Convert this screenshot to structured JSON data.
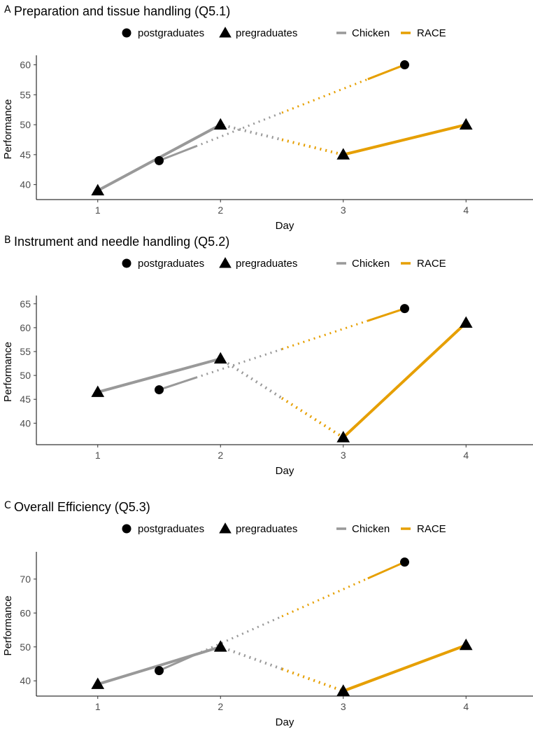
{
  "legend": {
    "shape_items": [
      "postgraduates",
      "pregraduates"
    ],
    "line_items": [
      "Chicken",
      "RACE"
    ]
  },
  "colors": {
    "Chicken": "#999999",
    "RACE": "#E69F00",
    "marker": "#000000"
  },
  "chart_data": [
    {
      "panel": "A",
      "type": "line",
      "title": "Preparation and tissue handling (Q5.1)",
      "xlabel": "Day",
      "ylabel": "Performance",
      "x_ticks": [
        1,
        2,
        3,
        4
      ],
      "y_ticks": [
        40,
        45,
        50,
        55,
        60
      ],
      "xlim": [
        0.5,
        4.5
      ],
      "ylim": [
        37.5,
        61.0
      ],
      "series": [
        {
          "name": "postgraduates",
          "shape": "circle",
          "x": [
            1.5,
            3.5
          ],
          "y": [
            44,
            60
          ]
        },
        {
          "name": "pregraduates",
          "shape": "triangle",
          "x": [
            1,
            2,
            3,
            4
          ],
          "y": [
            39,
            50,
            45,
            50
          ]
        }
      ]
    },
    {
      "panel": "B",
      "type": "line",
      "title": "Instrument and needle handling (Q5.2)",
      "xlabel": "Day",
      "ylabel": "Performance",
      "x_ticks": [
        1,
        2,
        3,
        4
      ],
      "y_ticks": [
        40,
        45,
        50,
        55,
        60,
        65
      ],
      "xlim": [
        0.5,
        4.5
      ],
      "ylim": [
        35.5,
        66.0
      ],
      "series": [
        {
          "name": "postgraduates",
          "shape": "circle",
          "x": [
            1.5,
            3.5
          ],
          "y": [
            47,
            64
          ]
        },
        {
          "name": "pregraduates",
          "shape": "triangle",
          "x": [
            1,
            2,
            3,
            4
          ],
          "y": [
            46.5,
            53.5,
            37,
            61
          ]
        }
      ]
    },
    {
      "panel": "C",
      "type": "line",
      "title": "Overall Efficiency (Q5.3)",
      "xlabel": "Day",
      "ylabel": "Performance",
      "x_ticks": [
        1,
        2,
        3,
        4
      ],
      "y_ticks": [
        40,
        50,
        60,
        70
      ],
      "xlim": [
        0.5,
        4.5
      ],
      "ylim": [
        35.5,
        77.0
      ],
      "series": [
        {
          "name": "postgraduates",
          "shape": "circle",
          "x": [
            1.5,
            3.5
          ],
          "y": [
            43,
            75
          ]
        },
        {
          "name": "pregraduates",
          "shape": "triangle",
          "x": [
            1,
            2,
            3,
            4
          ],
          "y": [
            39,
            50,
            37,
            50.5
          ]
        }
      ]
    }
  ]
}
